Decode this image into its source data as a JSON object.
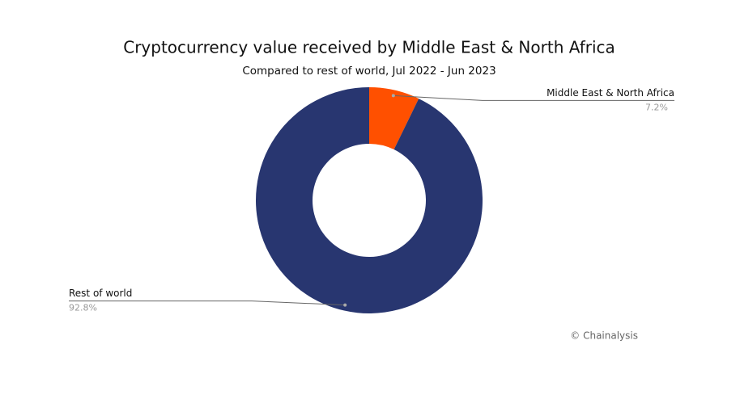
{
  "chart_data": {
    "type": "pie",
    "title": "Cryptocurrency value received by Middle East & North Africa",
    "subtitle": "Compared to rest of world, Jul 2022 - Jun 2023",
    "categories": [
      "Middle East & North Africa",
      "Rest of world"
    ],
    "values": [
      7.2,
      92.8
    ],
    "value_labels": [
      "7.2%",
      "92.8%"
    ],
    "colors": [
      "#ff5000",
      "#283670"
    ],
    "donut": true,
    "source": "© Chainalysis"
  }
}
